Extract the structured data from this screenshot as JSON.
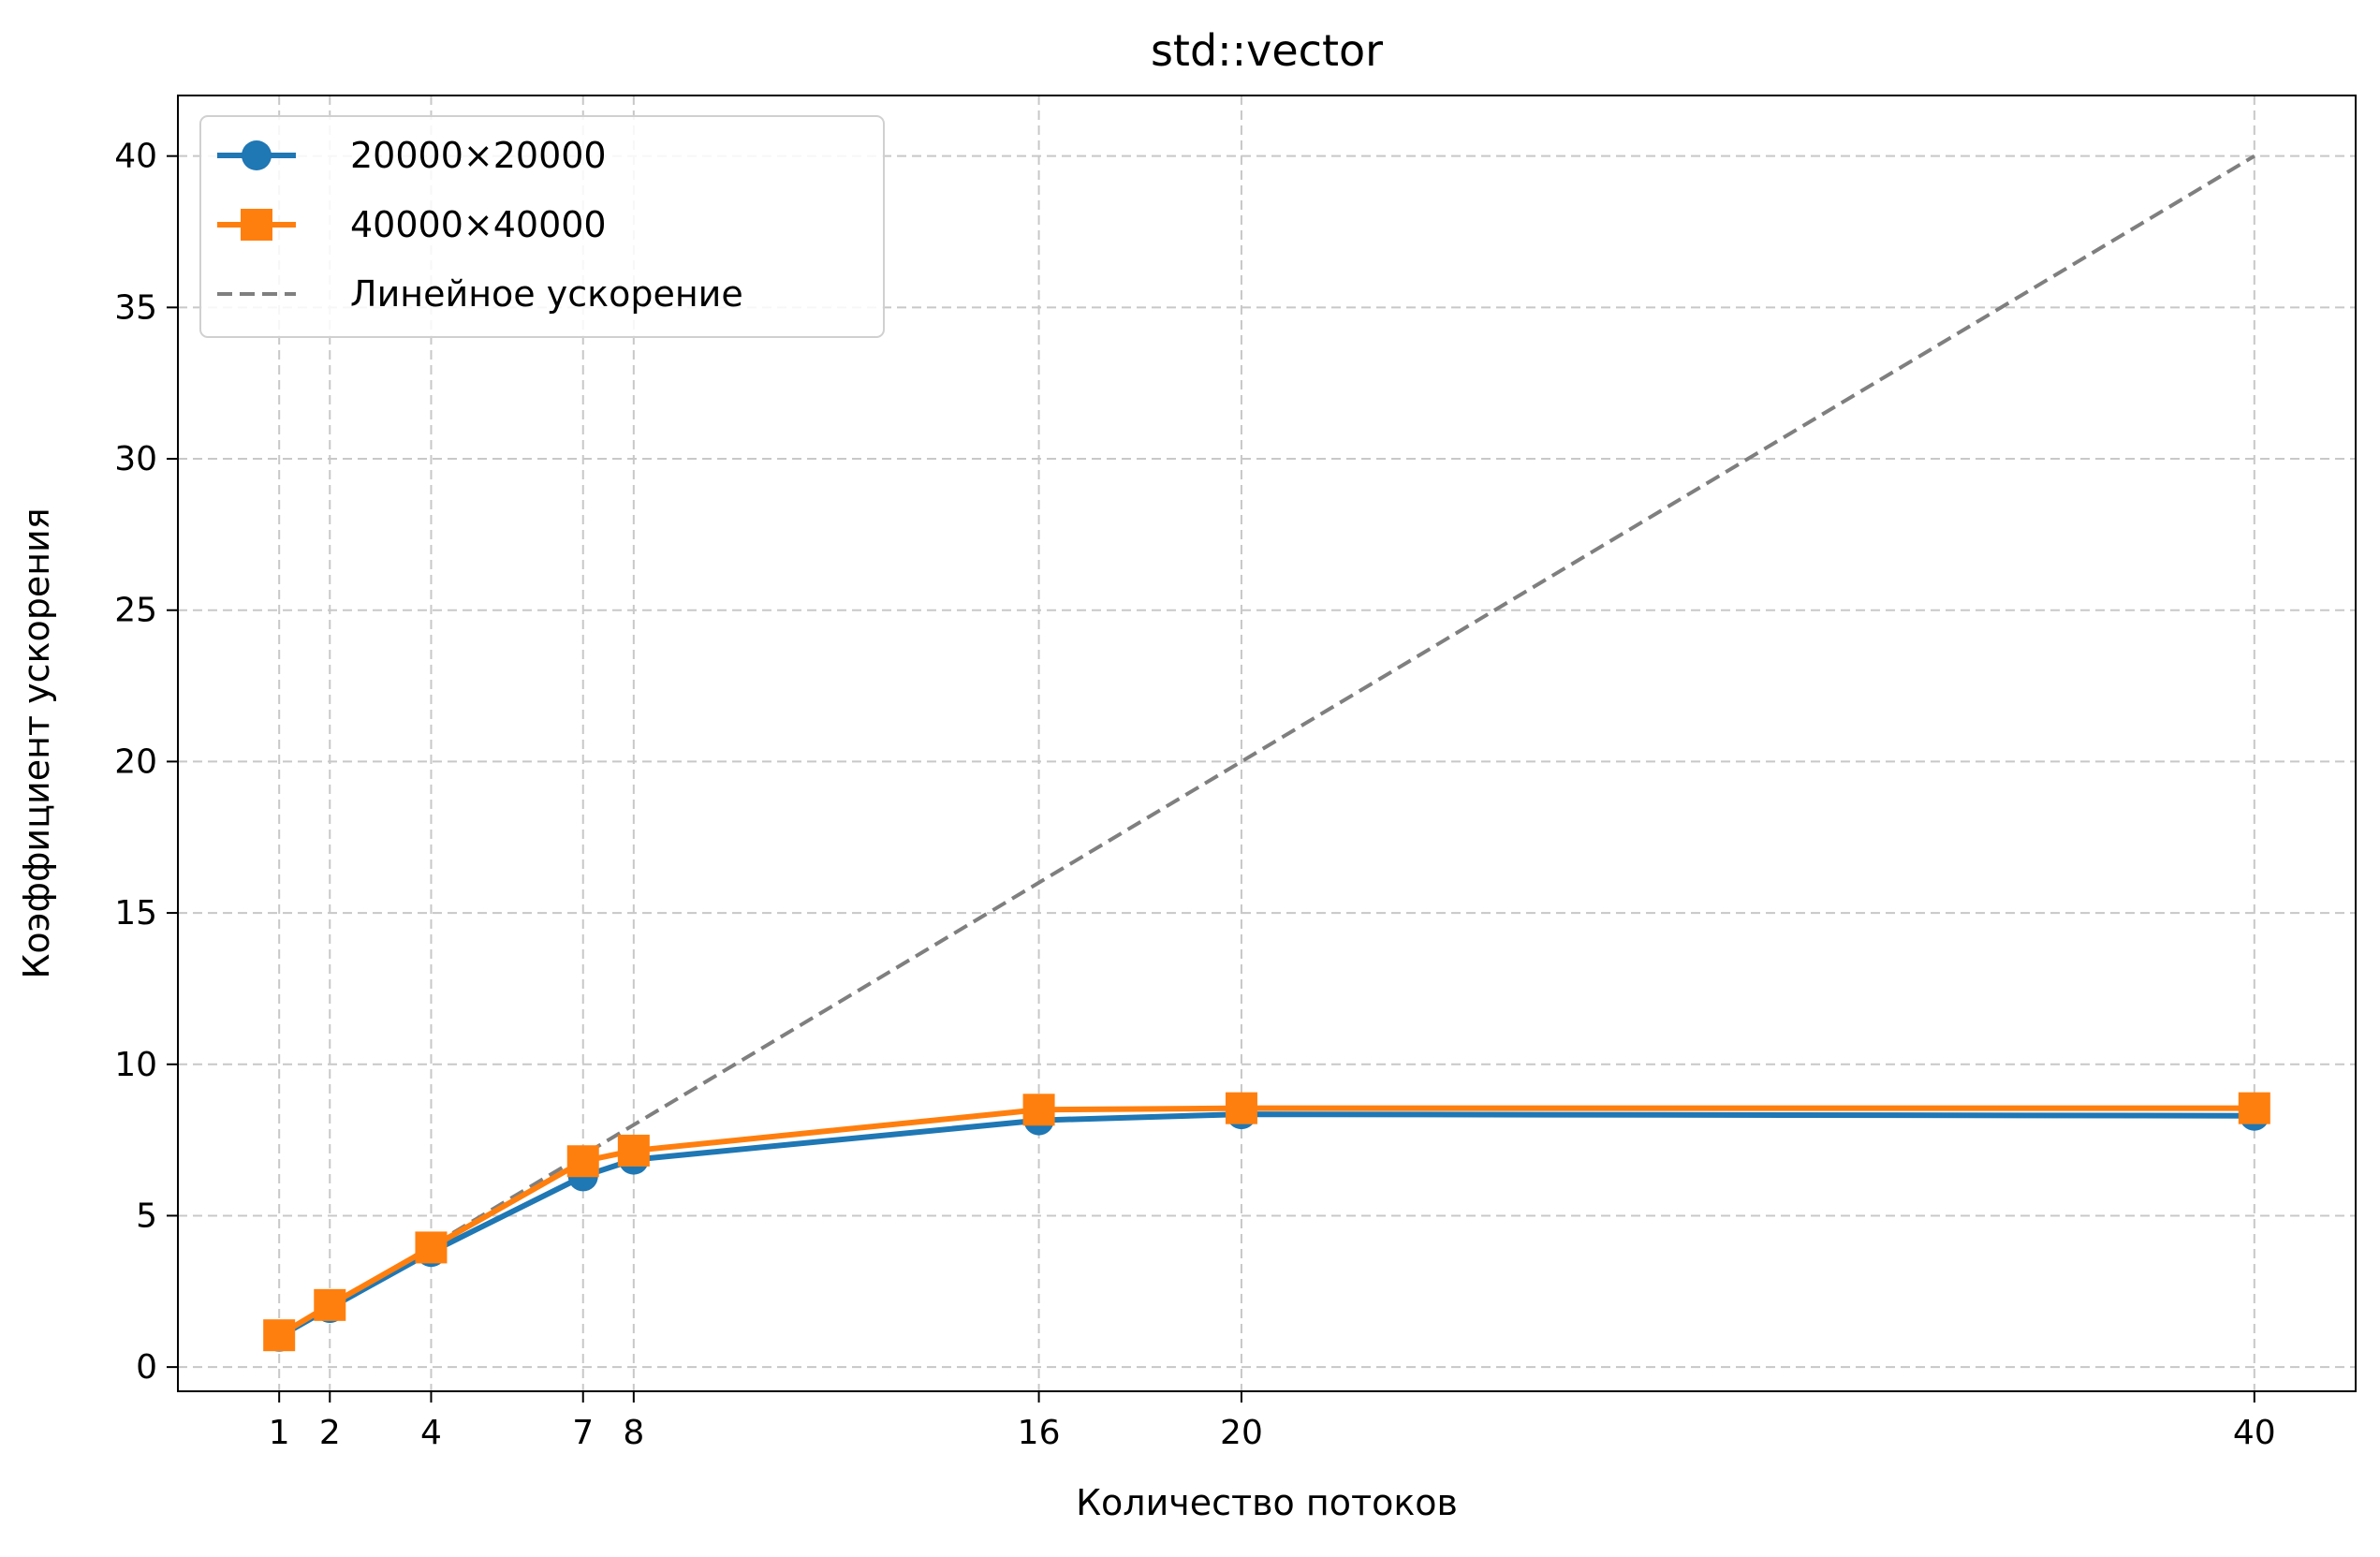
{
  "chart_data": {
    "type": "line",
    "title": "std::vector",
    "xlabel": "Количество потоков",
    "ylabel": "Коэффициент ускорения",
    "x": [
      1,
      2,
      4,
      7,
      8,
      16,
      20,
      40
    ],
    "xticks": [
      1,
      2,
      4,
      7,
      8,
      16,
      20,
      40
    ],
    "yticks": [
      0,
      5,
      10,
      15,
      20,
      25,
      30,
      35,
      40
    ],
    "xlim": [
      -1,
      42
    ],
    "ylim": [
      -0.8,
      42
    ],
    "grid": true,
    "legend_position": "top-left",
    "series": [
      {
        "name": "20000×20000",
        "values": [
          1.0,
          1.95,
          3.8,
          6.3,
          6.85,
          8.15,
          8.35,
          8.3
        ],
        "color": "#1f77b4",
        "marker": "circle",
        "linestyle": "solid"
      },
      {
        "name": "40000×40000",
        "values": [
          1.05,
          2.05,
          3.95,
          6.8,
          7.15,
          8.5,
          8.55,
          8.55
        ],
        "color": "#ff7f0e",
        "marker": "square",
        "linestyle": "solid"
      },
      {
        "name": "Линейное ускорение",
        "values": [
          1,
          2,
          4,
          7,
          8,
          16,
          20,
          40
        ],
        "color": "#7f7f7f",
        "marker": "none",
        "linestyle": "dashed"
      }
    ]
  }
}
